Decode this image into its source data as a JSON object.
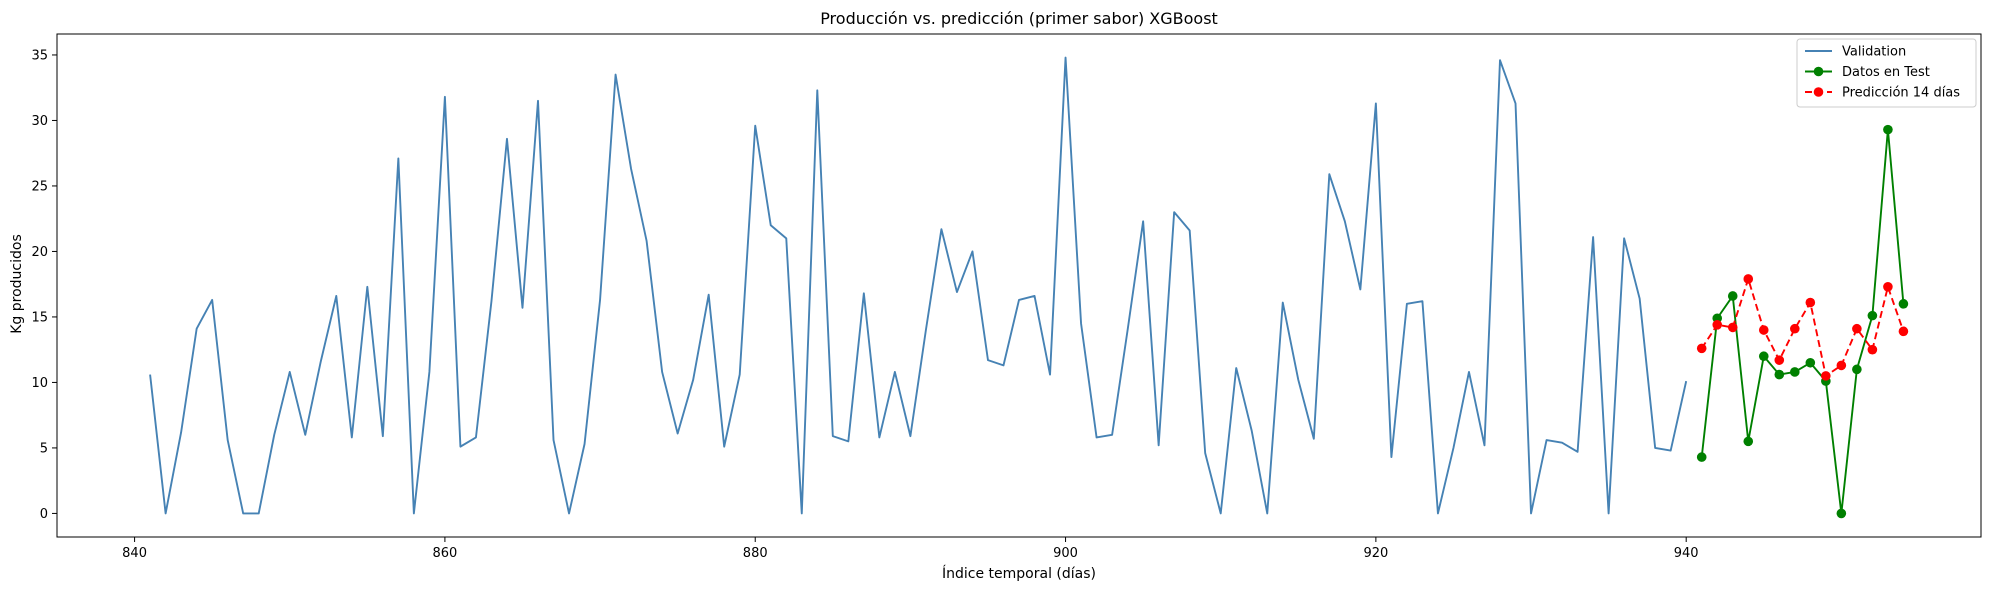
{
  "chart_data": {
    "type": "line",
    "title": "Producción vs. predicción (primer sabor) XGBoost",
    "xlabel": "Índice temporal (días)",
    "ylabel": "Kg producidos",
    "xlim": [
      835,
      959
    ],
    "ylim": [
      -1.8,
      36.6
    ],
    "xticks": [
      840,
      860,
      880,
      900,
      920,
      940
    ],
    "yticks": [
      0,
      5,
      10,
      15,
      20,
      25,
      30,
      35
    ],
    "grid": false,
    "legend_position": "top-right",
    "series": [
      {
        "name": "Validation",
        "color": "#4682b4",
        "style": "solid",
        "marker": "none",
        "x": [
          841,
          842,
          843,
          844,
          845,
          846,
          847,
          848,
          849,
          850,
          851,
          852,
          853,
          854,
          855,
          856,
          857,
          858,
          859,
          860,
          861,
          862,
          863,
          864,
          865,
          866,
          867,
          868,
          869,
          870,
          871,
          872,
          873,
          874,
          875,
          876,
          877,
          878,
          879,
          880,
          881,
          882,
          883,
          884,
          885,
          886,
          887,
          888,
          889,
          890,
          891,
          892,
          893,
          894,
          895,
          896,
          897,
          898,
          899,
          900,
          901,
          902,
          903,
          904,
          905,
          906,
          907,
          908,
          909,
          910,
          911,
          912,
          913,
          914,
          915,
          916,
          917,
          918,
          919,
          920,
          921,
          922,
          923,
          924,
          925,
          926,
          927,
          928,
          929,
          930,
          931,
          932,
          933,
          934,
          935,
          936,
          937,
          938,
          939,
          940
        ],
        "y": [
          10.6,
          0.0,
          6.2,
          14.1,
          16.3,
          5.6,
          0.0,
          0.0,
          6.0,
          10.8,
          6.0,
          11.6,
          16.6,
          5.8,
          17.3,
          5.9,
          27.1,
          0.0,
          10.8,
          31.8,
          5.1,
          5.8,
          16.2,
          28.6,
          15.7,
          31.5,
          5.6,
          0.0,
          5.3,
          16.3,
          33.5,
          26.3,
          20.8,
          10.8,
          6.1,
          10.2,
          16.7,
          5.1,
          10.6,
          29.6,
          22.0,
          21.0,
          0.0,
          32.3,
          5.9,
          5.5,
          16.8,
          5.8,
          10.8,
          5.9,
          14.0,
          21.7,
          16.9,
          20.0,
          11.7,
          11.3,
          16.3,
          16.6,
          10.6,
          34.8,
          14.5,
          5.8,
          6.0,
          14.0,
          22.3,
          5.2,
          23.0,
          21.6,
          4.6,
          0.0,
          11.1,
          6.3,
          0.0,
          16.1,
          10.2,
          5.7,
          25.9,
          22.3,
          17.1,
          31.3,
          4.3,
          16.0,
          16.2,
          0.0,
          5.0,
          10.8,
          5.2,
          34.6,
          31.3,
          0.0,
          5.6,
          5.4,
          4.7,
          21.1,
          0.0,
          21.0,
          16.4,
          5.0,
          4.8,
          10.1
        ]
      },
      {
        "name": "Datos en Test",
        "color": "#008000",
        "style": "solid",
        "marker": "circle",
        "x": [
          941,
          942,
          943,
          944,
          945,
          946,
          947,
          948,
          949,
          950,
          951,
          952,
          953,
          954
        ],
        "y": [
          4.3,
          14.9,
          16.6,
          5.5,
          12.0,
          10.6,
          10.8,
          11.5,
          10.1,
          0.0,
          11.0,
          15.1,
          29.3,
          16.0
        ]
      },
      {
        "name": "Predicción 14 días",
        "color": "#ff0000",
        "style": "dashed",
        "marker": "circle",
        "x": [
          941,
          942,
          943,
          944,
          945,
          946,
          947,
          948,
          949,
          950,
          951,
          952,
          953,
          954
        ],
        "y": [
          12.6,
          14.4,
          14.2,
          17.9,
          14.0,
          11.7,
          14.1,
          16.1,
          10.5,
          11.3,
          14.1,
          12.5,
          17.3,
          13.9
        ]
      }
    ]
  }
}
